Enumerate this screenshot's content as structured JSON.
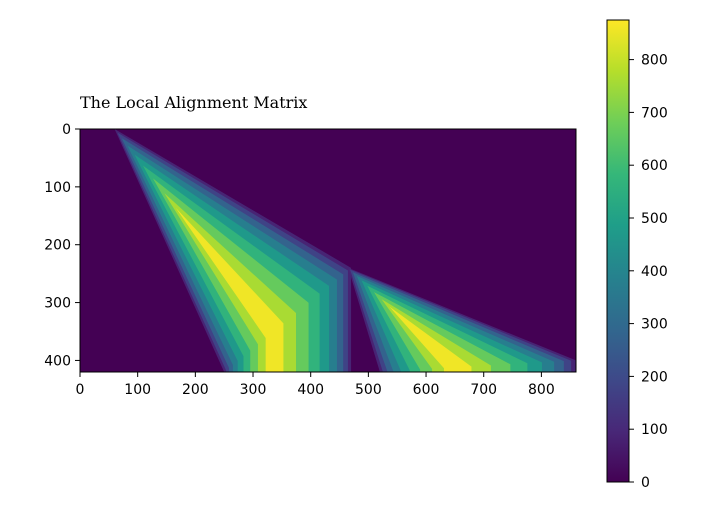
{
  "chart_data": {
    "type": "heatmap",
    "title": "The Local Alignment Matrix",
    "xlabel": "",
    "ylabel": "",
    "xlim": [
      0,
      860
    ],
    "ylim": [
      420,
      0
    ],
    "grid": false,
    "colormap": "viridis",
    "colorscale": [
      "#440154",
      "#482878",
      "#3e4989",
      "#31688e",
      "#26828e",
      "#1f9e89",
      "#35b779",
      "#6ece58",
      "#b5de2b",
      "#fde725"
    ],
    "x_ticks": [
      0,
      100,
      200,
      300,
      400,
      500,
      600,
      700,
      800
    ],
    "y_ticks": [
      0,
      100,
      200,
      300,
      400
    ],
    "colorbar": {
      "range": [
        0,
        875
      ],
      "ticks": [
        0,
        100,
        200,
        300,
        400,
        500,
        600,
        700,
        800
      ],
      "position": "right"
    },
    "bands": [
      {
        "name": "band-1",
        "apex": [
          60,
          0
        ],
        "left_edge_end": [
          250,
          420
        ],
        "right_edge_end": [
          470,
          240
        ],
        "peak_value": 870
      },
      {
        "name": "band-2",
        "apex": [
          465,
          240
        ],
        "left_edge_end": [
          520,
          420
        ],
        "right_edge_end": [
          860,
          400
        ],
        "peak_value": 860
      }
    ]
  }
}
